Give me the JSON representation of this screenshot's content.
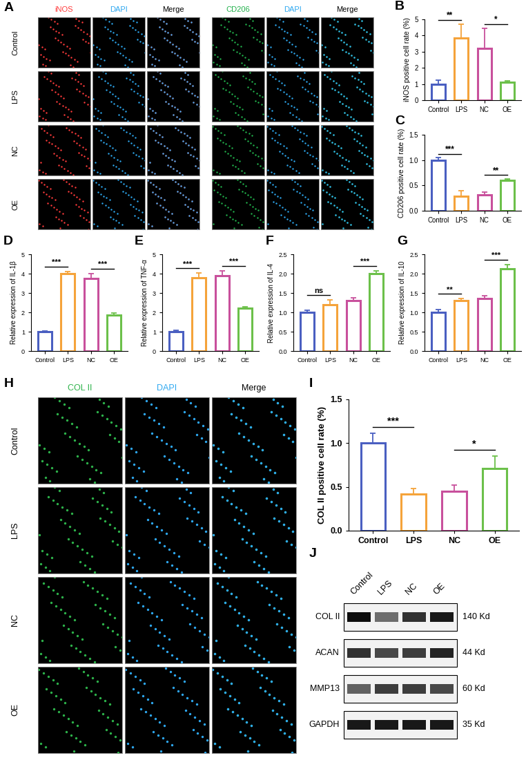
{
  "image_panels": [
    {
      "panel": "A",
      "rows": [
        "Control",
        "LPS",
        "NC",
        "OE"
      ],
      "groups": [
        [
          {
            "name": "iNOS",
            "color": "#ff3b3b"
          },
          {
            "name": "DAPI",
            "color": "#2ea8f0"
          },
          {
            "name": "Merge",
            "color": "#000000"
          }
        ],
        [
          {
            "name": "CD206",
            "color": "#22b14c"
          },
          {
            "name": "DAPI",
            "color": "#2ea8f0"
          },
          {
            "name": "Merge",
            "color": "#000000"
          }
        ]
      ]
    },
    {
      "panel": "H",
      "rows": [
        "Control",
        "LPS",
        "NC",
        "OE"
      ],
      "groups": [
        [
          {
            "name": "COL II",
            "color": "#2db34a"
          },
          {
            "name": "DAPI",
            "color": "#2ea8f0"
          },
          {
            "name": "Merge",
            "color": "#000000"
          }
        ]
      ]
    }
  ],
  "blot": {
    "panel": "J",
    "lanes": [
      "Control",
      "LPS",
      "NC",
      "OE"
    ],
    "bands": [
      {
        "name": "COL II",
        "size": "140 Kd",
        "intensities": [
          0.95,
          0.55,
          0.8,
          0.9
        ]
      },
      {
        "name": "ACAN",
        "size": "44 Kd",
        "intensities": [
          0.8,
          0.7,
          0.75,
          0.85
        ]
      },
      {
        "name": "MMP13",
        "size": "60 Kd",
        "intensities": [
          0.6,
          0.75,
          0.75,
          0.7
        ]
      },
      {
        "name": "GAPDH",
        "size": "35 Kd",
        "intensities": [
          0.9,
          0.9,
          0.9,
          0.9
        ]
      }
    ]
  },
  "chart_data": [
    {
      "panel": "B",
      "type": "bar",
      "ylabel": "iNOS positive cell rate (%)",
      "categories": [
        "Control",
        "LPS",
        "NC",
        "OE"
      ],
      "values": [
        1.0,
        3.85,
        3.2,
        1.1
      ],
      "errors": [
        0.25,
        0.85,
        1.25,
        0.1
      ],
      "colors": [
        "#4a5fc1",
        "#f5a33a",
        "#c8509c",
        "#6cc04a"
      ],
      "ylim": [
        0,
        5
      ],
      "yticks": [
        0,
        1,
        2,
        3,
        4,
        5
      ],
      "annotations": [
        {
          "from": "Control",
          "to": "LPS",
          "text": "**"
        },
        {
          "from": "NC",
          "to": "OE",
          "text": "*"
        }
      ]
    },
    {
      "panel": "C",
      "type": "bar",
      "ylabel": "CD206 positive cell rate (%)",
      "categories": [
        "Control",
        "LPS",
        "NC",
        "OE"
      ],
      "values": [
        1.0,
        0.29,
        0.32,
        0.6
      ],
      "errors": [
        0.05,
        0.1,
        0.05,
        0.03
      ],
      "colors": [
        "#4a5fc1",
        "#f5a33a",
        "#c8509c",
        "#6cc04a"
      ],
      "ylim": [
        0,
        1.5
      ],
      "yticks": [
        {
          "value": 0,
          "label": "0.0"
        },
        0.5,
        {
          "value": 1,
          "label": "1.0"
        },
        1.5
      ],
      "annotations": [
        {
          "from": "Control",
          "to": "LPS",
          "text": "***"
        },
        {
          "from": "NC",
          "to": "OE",
          "text": "**"
        }
      ]
    },
    {
      "panel": "D",
      "type": "bar",
      "ylabel": "Relative expression of IL-1β",
      "categories": [
        "Control",
        "LPS",
        "NC",
        "OE"
      ],
      "values": [
        1.0,
        4.0,
        3.75,
        1.85
      ],
      "errors": [
        0.05,
        0.12,
        0.25,
        0.12
      ],
      "colors": [
        "#4a5fc1",
        "#f5a33a",
        "#c8509c",
        "#6cc04a"
      ],
      "ylim": [
        0,
        5
      ],
      "yticks": [
        0,
        1,
        2,
        3,
        4,
        5
      ],
      "annotations": [
        {
          "from": "Control",
          "to": "LPS",
          "text": "***"
        },
        {
          "from": "NC",
          "to": "OE",
          "text": "***"
        }
      ]
    },
    {
      "panel": "E",
      "type": "bar",
      "ylabel": "Relative expression of TNF-α",
      "categories": [
        "Control",
        "LPS",
        "NC",
        "OE"
      ],
      "values": [
        1.0,
        3.8,
        3.9,
        2.2
      ],
      "errors": [
        0.07,
        0.22,
        0.25,
        0.07
      ],
      "colors": [
        "#4a5fc1",
        "#f5a33a",
        "#c8509c",
        "#6cc04a"
      ],
      "ylim": [
        0,
        5
      ],
      "yticks": [
        0,
        1,
        2,
        3,
        4,
        5
      ],
      "annotations": [
        {
          "from": "Control",
          "to": "LPS",
          "text": "***"
        },
        {
          "from": "NC",
          "to": "OE",
          "text": "***"
        }
      ]
    },
    {
      "panel": "F",
      "type": "bar",
      "ylabel": "Relative expression of IL-4",
      "categories": [
        "Control",
        "LPS",
        "NC",
        "OE"
      ],
      "values": [
        1.0,
        1.2,
        1.3,
        2.0
      ],
      "errors": [
        0.05,
        0.12,
        0.08,
        0.08
      ],
      "colors": [
        "#4a5fc1",
        "#f5a33a",
        "#c8509c",
        "#6cc04a"
      ],
      "ylim": [
        0,
        2.5
      ],
      "yticks": [
        {
          "value": 0,
          "label": "0.0"
        },
        0.5,
        {
          "value": 1,
          "label": "1.0"
        },
        1.5,
        {
          "value": 2,
          "label": "2.0"
        },
        2.5
      ],
      "annotations": [
        {
          "from": "Control",
          "to": "LPS",
          "text": "ns"
        },
        {
          "from": "NC",
          "to": "OE",
          "text": "***"
        }
      ]
    },
    {
      "panel": "G",
      "type": "bar",
      "ylabel": "Relative expression of IL-10",
      "categories": [
        "Control",
        "LPS",
        "NC",
        "OE"
      ],
      "values": [
        1.0,
        1.3,
        1.35,
        2.12
      ],
      "errors": [
        0.07,
        0.05,
        0.07,
        0.12
      ],
      "colors": [
        "#4a5fc1",
        "#f5a33a",
        "#c8509c",
        "#6cc04a"
      ],
      "ylim": [
        0,
        2.5
      ],
      "yticks": [
        {
          "value": 0,
          "label": "0.0"
        },
        0.5,
        {
          "value": 1,
          "label": "1.0"
        },
        1.5,
        {
          "value": 2,
          "label": "2.0"
        },
        2.5
      ],
      "annotations": [
        {
          "from": "Control",
          "to": "LPS",
          "text": "**"
        },
        {
          "from": "NC",
          "to": "OE",
          "text": "***"
        }
      ]
    },
    {
      "panel": "I",
      "type": "bar",
      "ylabel": "COL II positive cell rate (%)",
      "categories": [
        "Control",
        "LPS",
        "NC",
        "OE"
      ],
      "values": [
        1.0,
        0.42,
        0.45,
        0.71
      ],
      "errors": [
        0.11,
        0.06,
        0.07,
        0.14
      ],
      "colors": [
        "#4a5fc1",
        "#f5a33a",
        "#c8509c",
        "#6cc04a"
      ],
      "ylim": [
        0,
        1.5
      ],
      "yticks": [
        {
          "value": 0,
          "label": "0.0"
        },
        0.5,
        {
          "value": 1,
          "label": "1.0"
        },
        1.5
      ],
      "annotations": [
        {
          "from": "Control",
          "to": "LPS",
          "text": "***"
        },
        {
          "from": "NC",
          "to": "OE",
          "text": "*"
        }
      ]
    }
  ]
}
